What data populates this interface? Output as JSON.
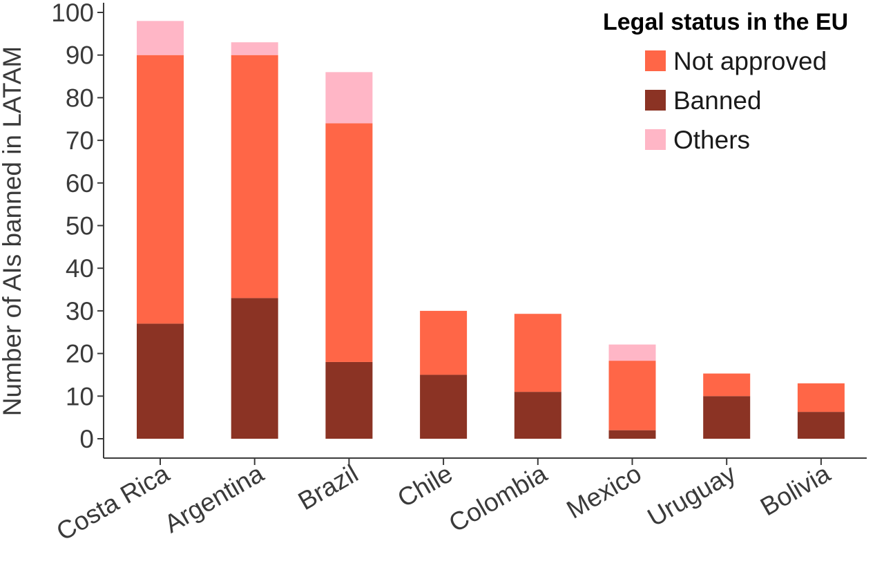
{
  "chart_data": {
    "type": "bar",
    "stacked": true,
    "title": "",
    "xlabel": "",
    "ylabel": "Number of AIs banned in LATAM",
    "ylim": [
      0,
      100
    ],
    "yticks": [
      0,
      10,
      20,
      30,
      40,
      50,
      60,
      70,
      80,
      90,
      100
    ],
    "grid": false,
    "categories": [
      "Costa Rica",
      "Argentina",
      "Brazil",
      "Chile",
      "Colombia",
      "Mexico",
      "Uruguay",
      "Bolivia"
    ],
    "series": [
      {
        "name": "Banned",
        "color": "#8b3324",
        "values": [
          27,
          33,
          18,
          15,
          11,
          2,
          10,
          6.3
        ]
      },
      {
        "name": "Not approved",
        "color": "#ff6647",
        "values": [
          63,
          57,
          56,
          15,
          18.3,
          16.3,
          5.3,
          6.7
        ]
      },
      {
        "name": "Others",
        "color": "#ffb6c6",
        "values": [
          8,
          3,
          12,
          0,
          0,
          3.8,
          0,
          0
        ]
      }
    ],
    "legend": {
      "title": "Legal status in the EU",
      "position": "top-right",
      "order": [
        "Not approved",
        "Banned",
        "Others"
      ]
    }
  }
}
